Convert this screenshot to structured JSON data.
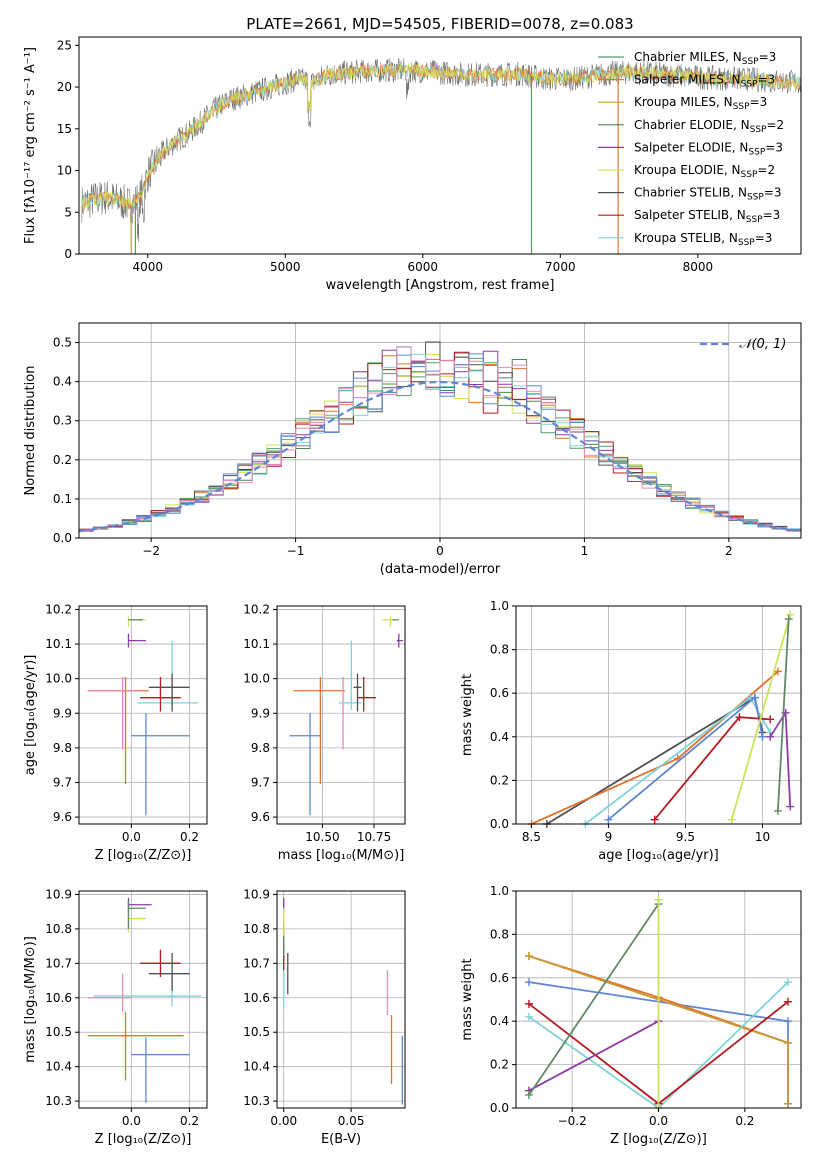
{
  "figure_title": "PLATE=2661, MJD=54505, FIBERID=0078, z=0.083",
  "colors": {
    "Chabrier MILES": "#5a9b6b",
    "Salpeter MILES": "#e2732f",
    "Kroupa MILES": "#c79a3a",
    "Chabrier ELODIE": "#4f8a4f",
    "Salpeter ELODIE": "#8e3aa6",
    "Kroupa ELODIE": "#d6e05a",
    "Chabrier STELIB": "#505050",
    "Salpeter STELIB": "#b5191f",
    "Kroupa STELIB": "#7fd3d9",
    "blue": "#5e86d4",
    "pink": "#e58bb8",
    "green2": "#5f8a63",
    "lime": "#cbe35c"
  },
  "chart_data": [
    {
      "id": "spectrum",
      "type": "line",
      "title": "PLATE=2661, MJD=54505, FIBERID=0078, z=0.083",
      "xlabel": "wavelength [Angstrom, rest frame]",
      "ylabel": "Flux [fλ10⁻¹⁷ erg cm⁻² s⁻¹ A⁻¹]",
      "xlim": [
        3500,
        8750
      ],
      "ylim": [
        0,
        26
      ],
      "xticks": [
        4000,
        5000,
        6000,
        7000,
        8000
      ],
      "yticks": [
        0,
        5,
        10,
        15,
        20,
        25
      ],
      "legend": [
        "Chabrier MILES, N_SSP=3",
        "Salpeter MILES, N_SSP=3",
        "Kroupa MILES, N_SSP=3",
        "Chabrier ELODIE, N_SSP=2",
        "Salpeter ELODIE, N_SSP=3",
        "Kroupa ELODIE, N_SSP=2",
        "Chabrier STELIB, N_SSP=3",
        "Salpeter STELIB, N_SSP=3",
        "Kroupa STELIB, N_SSP=3"
      ],
      "legend_placement": "upper-right",
      "continuum": [
        [
          3520,
          6
        ],
        [
          3600,
          6.5
        ],
        [
          3700,
          6.8
        ],
        [
          3800,
          6.3
        ],
        [
          3880,
          5.8
        ],
        [
          3950,
          7
        ],
        [
          4000,
          9.5
        ],
        [
          4100,
          12
        ],
        [
          4200,
          13.5
        ],
        [
          4300,
          14.5
        ],
        [
          4400,
          16
        ],
        [
          4500,
          17.5
        ],
        [
          4600,
          18.5
        ],
        [
          4700,
          19
        ],
        [
          4800,
          19.5
        ],
        [
          4900,
          20
        ],
        [
          5000,
          20.5
        ],
        [
          5100,
          21
        ],
        [
          5200,
          20.5
        ],
        [
          5300,
          21.5
        ],
        [
          5500,
          21.8
        ],
        [
          5700,
          22
        ],
        [
          5900,
          22
        ],
        [
          6100,
          21.8
        ],
        [
          6300,
          21.5
        ],
        [
          6500,
          21.5
        ],
        [
          6700,
          21.6
        ],
        [
          6900,
          21
        ],
        [
          7100,
          21
        ],
        [
          7300,
          21.5
        ],
        [
          7500,
          21.8
        ],
        [
          7700,
          21.6
        ],
        [
          7900,
          21.3
        ],
        [
          8100,
          21.1
        ],
        [
          8300,
          21
        ],
        [
          8500,
          20.8
        ],
        [
          8750,
          20.5
        ]
      ]
    },
    {
      "id": "residuals",
      "type": "histogram",
      "xlabel": "(data-model)/error",
      "ylabel": "Normed distribution",
      "xlim": [
        -2.5,
        2.5
      ],
      "ylim": [
        0,
        0.55
      ],
      "xticks": [
        -2,
        -1,
        0,
        1,
        2
      ],
      "yticks": [
        0.0,
        0.1,
        0.2,
        0.3,
        0.4,
        0.5
      ],
      "legend": [
        "𝒩(0, 1)"
      ],
      "legend_placement": "upper-right",
      "bin_width": 0.1,
      "base_density": "normal(0,1)"
    },
    {
      "id": "Z-age",
      "type": "errorbar",
      "xlabel": "Z [log₁₀(Z/Z⊙)]",
      "ylabel": "age  [log₁₀(age/yr)]",
      "xlim": [
        -0.18,
        0.26
      ],
      "ylim": [
        9.58,
        10.21
      ],
      "xticks": [
        -0.0,
        0.2
      ],
      "xticklabels": [
        "0.0",
        "0.2"
      ],
      "yticks": [
        9.6,
        9.7,
        9.8,
        9.9,
        10.0,
        10.1,
        10.2
      ],
      "points": [
        {
          "x": 0.05,
          "y": 9.835,
          "xerr": [
            0.05,
            0.15
          ],
          "yerr": [
            0.23,
            0.065
          ],
          "color": "#5e86d4"
        },
        {
          "x": -0.02,
          "y": 9.965,
          "xerr": [
            0.13,
            0.08
          ],
          "yerr": [
            0.27,
            0.04
          ],
          "color": "#e2732f"
        },
        {
          "x": -0.03,
          "y": 9.965,
          "xerr": [
            0.12,
            0.05
          ],
          "yerr": [
            0.17,
            0.04
          ],
          "color": "#e58bb8"
        },
        {
          "x": 0.14,
          "y": 9.93,
          "xerr": [
            0.12,
            0.09
          ],
          "yerr": [
            0.02,
            0.18
          ],
          "color": "#7fd3d9"
        },
        {
          "x": 0.1,
          "y": 9.945,
          "xerr": [
            0.07,
            0.07
          ],
          "yerr": [
            0.04,
            0.06
          ],
          "color": "#b5191f"
        },
        {
          "x": 0.14,
          "y": 9.975,
          "xerr": [
            0.08,
            0.06
          ],
          "yerr": [
            0.07,
            0.04
          ],
          "color": "#505050"
        },
        {
          "x": -0.01,
          "y": 10.11,
          "xerr": [
            0.0,
            0.06
          ],
          "yerr": [
            0.02,
            0.02
          ],
          "color": "#8e3aa6"
        },
        {
          "x": -0.01,
          "y": 10.17,
          "xerr": [
            0.0,
            0.06
          ],
          "yerr": [
            0.02,
            0.01
          ],
          "color": "#cbe35c"
        },
        {
          "x": -0.01,
          "y": 10.17,
          "xerr": [
            0.0,
            0.05
          ],
          "yerr": [
            0.0,
            0.0
          ],
          "color": "#5f8a63"
        }
      ]
    },
    {
      "id": "mass-age",
      "type": "errorbar",
      "xlabel": "mass [log₁₀(M/M⊙)]",
      "xlim": [
        10.28,
        10.9
      ],
      "ylim": [
        9.58,
        10.21
      ],
      "xticks": [
        10.5,
        10.75
      ],
      "xticklabels": [
        "10.50",
        "10.75"
      ],
      "yticks": [
        9.6,
        9.7,
        9.8,
        9.9,
        10.0,
        10.1,
        10.2
      ],
      "points": [
        {
          "x": 10.44,
          "y": 9.835,
          "xerr": [
            0.1,
            0.05
          ],
          "yerr": [
            0.23,
            0.065
          ],
          "color": "#5e86d4"
        },
        {
          "x": 10.49,
          "y": 9.965,
          "xerr": [
            0.13,
            0.12
          ],
          "yerr": [
            0.27,
            0.04
          ],
          "color": "#e2732f"
        },
        {
          "x": 10.6,
          "y": 9.965,
          "xerr": [
            0.0,
            0.0
          ],
          "yerr": [
            0.17,
            0.04
          ],
          "color": "#e58bb8"
        },
        {
          "x": 10.64,
          "y": 9.93,
          "xerr": [
            0.06,
            0.05
          ],
          "yerr": [
            0.02,
            0.18
          ],
          "color": "#7fd3d9"
        },
        {
          "x": 10.7,
          "y": 9.945,
          "xerr": [
            0.03,
            0.06
          ],
          "yerr": [
            0.04,
            0.06
          ],
          "color": "#b5191f"
        },
        {
          "x": 10.67,
          "y": 9.975,
          "xerr": [
            0.02,
            0.02
          ],
          "yerr": [
            0.07,
            0.04
          ],
          "color": "#505050"
        },
        {
          "x": 10.87,
          "y": 10.11,
          "xerr": [
            0.01,
            0.02
          ],
          "yerr": [
            0.02,
            0.02
          ],
          "color": "#8e3aa6"
        },
        {
          "x": 10.83,
          "y": 10.17,
          "xerr": [
            0.04,
            0.02
          ],
          "yerr": [
            0.02,
            0.01
          ],
          "color": "#cbe35c"
        },
        {
          "x": 10.86,
          "y": 10.17,
          "xerr": [
            0.02,
            0.01
          ],
          "yerr": [
            0.0,
            0.0
          ],
          "color": "#5f8a63"
        }
      ]
    },
    {
      "id": "age-weight",
      "type": "line",
      "xlabel": "age  [log₁₀(age/yr)]",
      "ylabel": "mass weight",
      "xlim": [
        8.4,
        10.25
      ],
      "ylim": [
        0,
        1
      ],
      "xticks": [
        8.5,
        9.0,
        9.5,
        10.0
      ],
      "yticks": [
        0.0,
        0.2,
        0.4,
        0.6,
        0.8,
        1.0
      ],
      "series": [
        {
          "color": "#505050",
          "values": [
            [
              8.6,
              0.0
            ],
            [
              9.95,
              0.58
            ],
            [
              10.0,
              0.42
            ]
          ]
        },
        {
          "color": "#e2732f",
          "values": [
            [
              8.5,
              0.0
            ],
            [
              9.45,
              0.3
            ],
            [
              10.1,
              0.7
            ]
          ]
        },
        {
          "color": "#7fd3d9",
          "values": [
            [
              8.85,
              0.0
            ],
            [
              9.92,
              0.58
            ],
            [
              10.05,
              0.42
            ]
          ]
        },
        {
          "color": "#5e86d4",
          "values": [
            [
              9.0,
              0.02
            ],
            [
              9.95,
              0.58
            ],
            [
              10.0,
              0.4
            ]
          ]
        },
        {
          "color": "#b5191f",
          "values": [
            [
              9.3,
              0.02
            ],
            [
              9.85,
              0.49
            ],
            [
              10.05,
              0.48
            ]
          ]
        },
        {
          "color": "#8e3aa6",
          "values": [
            [
              10.05,
              0.4
            ],
            [
              10.15,
              0.51
            ],
            [
              10.18,
              0.08
            ]
          ]
        },
        {
          "color": "#cbe35c",
          "values": [
            [
              9.8,
              0.02
            ],
            [
              10.18,
              0.96
            ]
          ]
        },
        {
          "color": "#5f8a63",
          "values": [
            [
              10.1,
              0.06
            ],
            [
              10.17,
              0.94
            ]
          ]
        }
      ]
    },
    {
      "id": "Z-mass",
      "type": "errorbar",
      "xlabel": "Z [log₁₀(Z/Z⊙)]",
      "ylabel": "mass [log₁₀(M/M⊙)]",
      "xlim": [
        -0.18,
        0.26
      ],
      "ylim": [
        10.28,
        10.91
      ],
      "xticks": [
        -0.0,
        0.2
      ],
      "xticklabels": [
        "0.0",
        "0.2"
      ],
      "yticks": [
        10.3,
        10.4,
        10.5,
        10.6,
        10.7,
        10.8,
        10.9
      ],
      "points": [
        {
          "x": 0.05,
          "y": 10.435,
          "xerr": [
            0.05,
            0.15
          ],
          "yerr": [
            0.14,
            0.05
          ],
          "color": "#5e86d4"
        },
        {
          "x": -0.02,
          "y": 10.49,
          "xerr": [
            0.13,
            0.2
          ],
          "yerr": [
            0.13,
            0.07
          ],
          "color": "#e2732f"
        },
        {
          "x": -0.03,
          "y": 10.6,
          "xerr": [
            0.12,
            0.03
          ],
          "yerr": [
            0.04,
            0.07
          ],
          "color": "#e58bb8"
        },
        {
          "x": 0.14,
          "y": 10.605,
          "xerr": [
            0.27,
            0.1
          ],
          "yerr": [
            0.03,
            0.06
          ],
          "color": "#7fd3d9"
        },
        {
          "x": 0.1,
          "y": 10.7,
          "xerr": [
            0.07,
            0.07
          ],
          "yerr": [
            0.04,
            0.04
          ],
          "color": "#b5191f"
        },
        {
          "x": 0.14,
          "y": 10.67,
          "xerr": [
            0.08,
            0.06
          ],
          "yerr": [
            0.05,
            0.06
          ],
          "color": "#505050"
        },
        {
          "x": -0.01,
          "y": 10.87,
          "xerr": [
            0.0,
            0.08
          ],
          "yerr": [
            0.02,
            0.02
          ],
          "color": "#8e3aa6"
        },
        {
          "x": -0.01,
          "y": 10.83,
          "xerr": [
            0.0,
            0.06
          ],
          "yerr": [
            0.04,
            0.03
          ],
          "color": "#cbe35c"
        },
        {
          "x": -0.01,
          "y": 10.86,
          "xerr": [
            0.0,
            0.06
          ],
          "yerr": [
            0.06,
            0.02
          ],
          "color": "#5f8a63"
        }
      ]
    },
    {
      "id": "ebv-mass",
      "type": "errorbar",
      "xlabel": "E(B-V)",
      "xlim": [
        -0.005,
        0.09
      ],
      "ylim": [
        10.28,
        10.91
      ],
      "xticks": [
        0.0,
        0.05
      ],
      "xticklabels": [
        "0.00",
        "0.05"
      ],
      "yticks": [
        10.3,
        10.4,
        10.5,
        10.6,
        10.7,
        10.8,
        10.9
      ],
      "points": [
        {
          "x": 0.088,
          "y": 10.39,
          "xerr": [
            0.0,
            0.0
          ],
          "yerr": [
            0.1,
            0.1
          ],
          "color": "#5e86d4"
        },
        {
          "x": 0.08,
          "y": 10.46,
          "xerr": [
            0.0,
            0.0
          ],
          "yerr": [
            0.11,
            0.09
          ],
          "color": "#e2732f"
        },
        {
          "x": 0.077,
          "y": 10.62,
          "xerr": [
            0.0,
            0.0
          ],
          "yerr": [
            0.07,
            0.06
          ],
          "color": "#e58bb8"
        },
        {
          "x": 0.0,
          "y": 10.62,
          "xerr": [
            0.0,
            0.0
          ],
          "yerr": [
            0.05,
            0.06
          ],
          "color": "#7fd3d9"
        },
        {
          "x": 0.0,
          "y": 10.74,
          "xerr": [
            0.0,
            0.0
          ],
          "yerr": [
            0.06,
            0.08
          ],
          "color": "#b5191f"
        },
        {
          "x": 0.003,
          "y": 10.67,
          "xerr": [
            0.0,
            0.0
          ],
          "yerr": [
            0.06,
            0.06
          ],
          "color": "#505050"
        },
        {
          "x": 0.0,
          "y": 10.87,
          "xerr": [
            0.0,
            0.0
          ],
          "yerr": [
            0.02,
            0.02
          ],
          "color": "#8e3aa6"
        },
        {
          "x": 0.0,
          "y": 10.8,
          "xerr": [
            0.0,
            0.0
          ],
          "yerr": [
            0.04,
            0.06
          ],
          "color": "#cbe35c"
        },
        {
          "x": 0.0,
          "y": 10.75,
          "xerr": [
            0.0,
            0.0
          ],
          "yerr": [
            0.03,
            0.03
          ],
          "color": "#5f8a63"
        }
      ]
    },
    {
      "id": "Z-weight",
      "type": "line",
      "xlabel": "Z [log₁₀(Z/Z⊙)]",
      "ylabel": "mass weight",
      "xlim": [
        -0.33,
        0.33
      ],
      "ylim": [
        0,
        1
      ],
      "xticks": [
        -0.2,
        0.0,
        0.2
      ],
      "xticklabels": [
        "−0.2",
        "0.0",
        "0.2"
      ],
      "yticks": [
        0.0,
        0.2,
        0.4,
        0.6,
        0.8,
        1.0
      ],
      "series": [
        {
          "color": "#5e86d4",
          "values": [
            [
              -0.3,
              0.58
            ],
            [
              0.3,
              0.4
            ],
            [
              0.3,
              0.02
            ]
          ]
        },
        {
          "color": "#e2732f",
          "values": [
            [
              -0.3,
              0.7
            ],
            [
              0.0,
              0.51
            ],
            [
              0.3,
              0.3
            ]
          ]
        },
        {
          "color": "#c79a3a",
          "values": [
            [
              -0.3,
              0.7
            ],
            [
              0.3,
              0.3
            ],
            [
              0.3,
              0.02
            ]
          ]
        },
        {
          "color": "#7fd3d9",
          "values": [
            [
              -0.3,
              0.42
            ],
            [
              0.0,
              0.0
            ],
            [
              0.3,
              0.58
            ]
          ]
        },
        {
          "color": "#b5191f",
          "values": [
            [
              -0.3,
              0.48
            ],
            [
              0.0,
              0.02
            ],
            [
              0.3,
              0.49
            ]
          ]
        },
        {
          "color": "#8e3aa6",
          "values": [
            [
              -0.3,
              0.08
            ],
            [
              0.0,
              0.4
            ]
          ]
        },
        {
          "color": "#5f8a63",
          "values": [
            [
              -0.3,
              0.06
            ],
            [
              0.0,
              0.94
            ]
          ]
        },
        {
          "color": "#cbe35c",
          "values": [
            [
              0.0,
              0.0
            ],
            [
              0.0,
              0.96
            ]
          ]
        }
      ]
    }
  ]
}
